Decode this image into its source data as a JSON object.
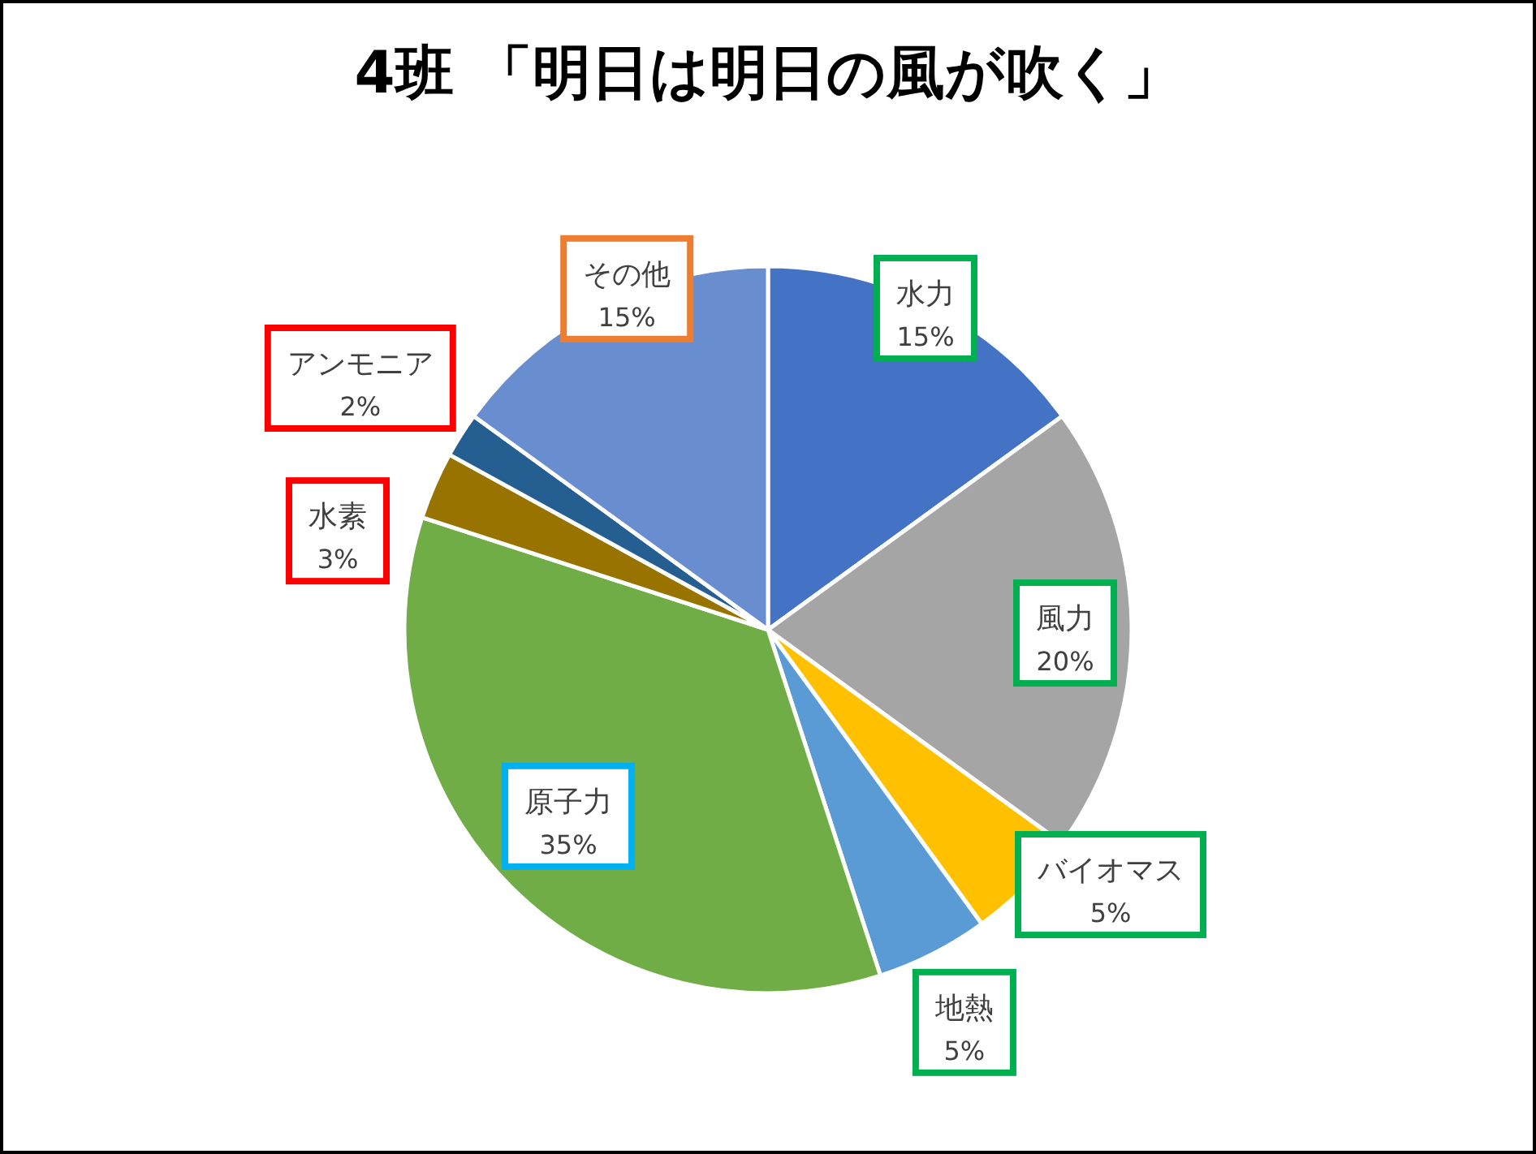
{
  "chart_data": {
    "type": "pie",
    "title": "4班 「明日は明日の風が吹く」",
    "categories": [
      "水力",
      "風力",
      "バイオマス",
      "地熱",
      "原子力",
      "水素",
      "アンモニア",
      "その他"
    ],
    "values": [
      15,
      20,
      5,
      5,
      35,
      3,
      2,
      15
    ],
    "colors": [
      "#4472c4",
      "#a5a5a5",
      "#ffc000",
      "#5b9bd5",
      "#70ad47",
      "#997300",
      "#255e91",
      "#698ed0"
    ],
    "value_labels": [
      "15%",
      "20%",
      "5%",
      "5%",
      "35%",
      "3%",
      "2%",
      "15%"
    ]
  }
}
